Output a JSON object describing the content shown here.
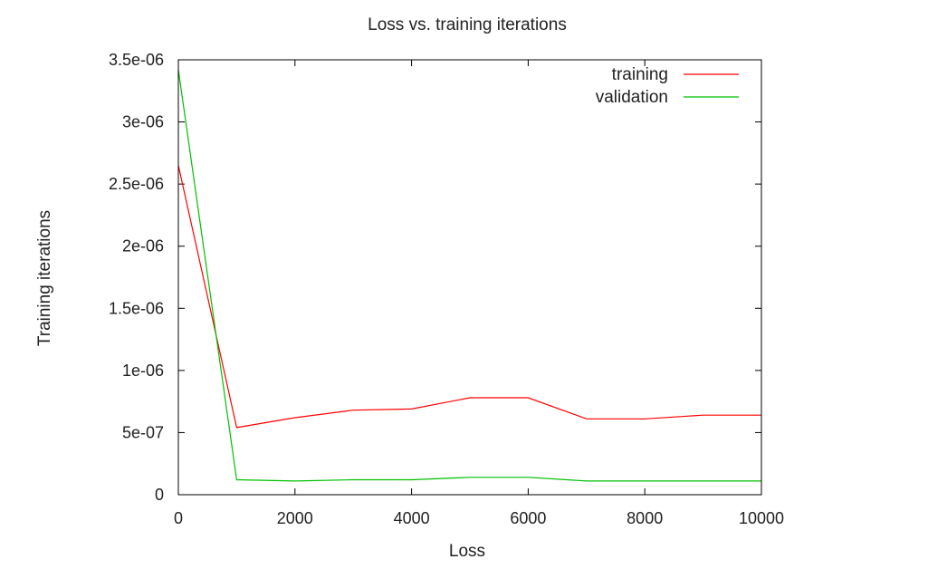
{
  "chart_data": {
    "type": "line",
    "title": "Loss vs. training iterations",
    "xlabel": "Loss",
    "ylabel": "Training iterations",
    "xlim": [
      0,
      10000
    ],
    "ylim": [
      0,
      3.5e-06
    ],
    "grid": false,
    "legend_position": "top-right",
    "x_ticks": [
      {
        "value": 0,
        "label": "0"
      },
      {
        "value": 2000,
        "label": "2000"
      },
      {
        "value": 4000,
        "label": "4000"
      },
      {
        "value": 6000,
        "label": "6000"
      },
      {
        "value": 8000,
        "label": "8000"
      },
      {
        "value": 10000,
        "label": "10000"
      }
    ],
    "y_ticks": [
      {
        "value": 0,
        "label": "0"
      },
      {
        "value": 5e-07,
        "label": "5e-07"
      },
      {
        "value": 1e-06,
        "label": "1e-06"
      },
      {
        "value": 1.5e-06,
        "label": "1.5e-06"
      },
      {
        "value": 2e-06,
        "label": "2e-06"
      },
      {
        "value": 2.5e-06,
        "label": "2.5e-06"
      },
      {
        "value": 3e-06,
        "label": "3e-06"
      },
      {
        "value": 3.5e-06,
        "label": "3.5e-06"
      }
    ],
    "series": [
      {
        "name": "training",
        "color": "#ff0000",
        "x": [
          0,
          1000,
          2000,
          3000,
          4000,
          5000,
          6000,
          7000,
          8000,
          9000,
          10000
        ],
        "values": [
          2.65e-06,
          5.4e-07,
          6.2e-07,
          6.8e-07,
          6.9e-07,
          7.8e-07,
          7.8e-07,
          6.1e-07,
          6.1e-07,
          6.4e-07,
          6.4e-07
        ]
      },
      {
        "name": "validation",
        "color": "#00c000",
        "x": [
          0,
          1000,
          2000,
          3000,
          4000,
          5000,
          6000,
          7000,
          8000,
          9000,
          10000
        ],
        "values": [
          3.42e-06,
          1.2e-07,
          1.1e-07,
          1.2e-07,
          1.2e-07,
          1.4e-07,
          1.4e-07,
          1.1e-07,
          1.1e-07,
          1.1e-07,
          1.1e-07
        ]
      }
    ]
  }
}
